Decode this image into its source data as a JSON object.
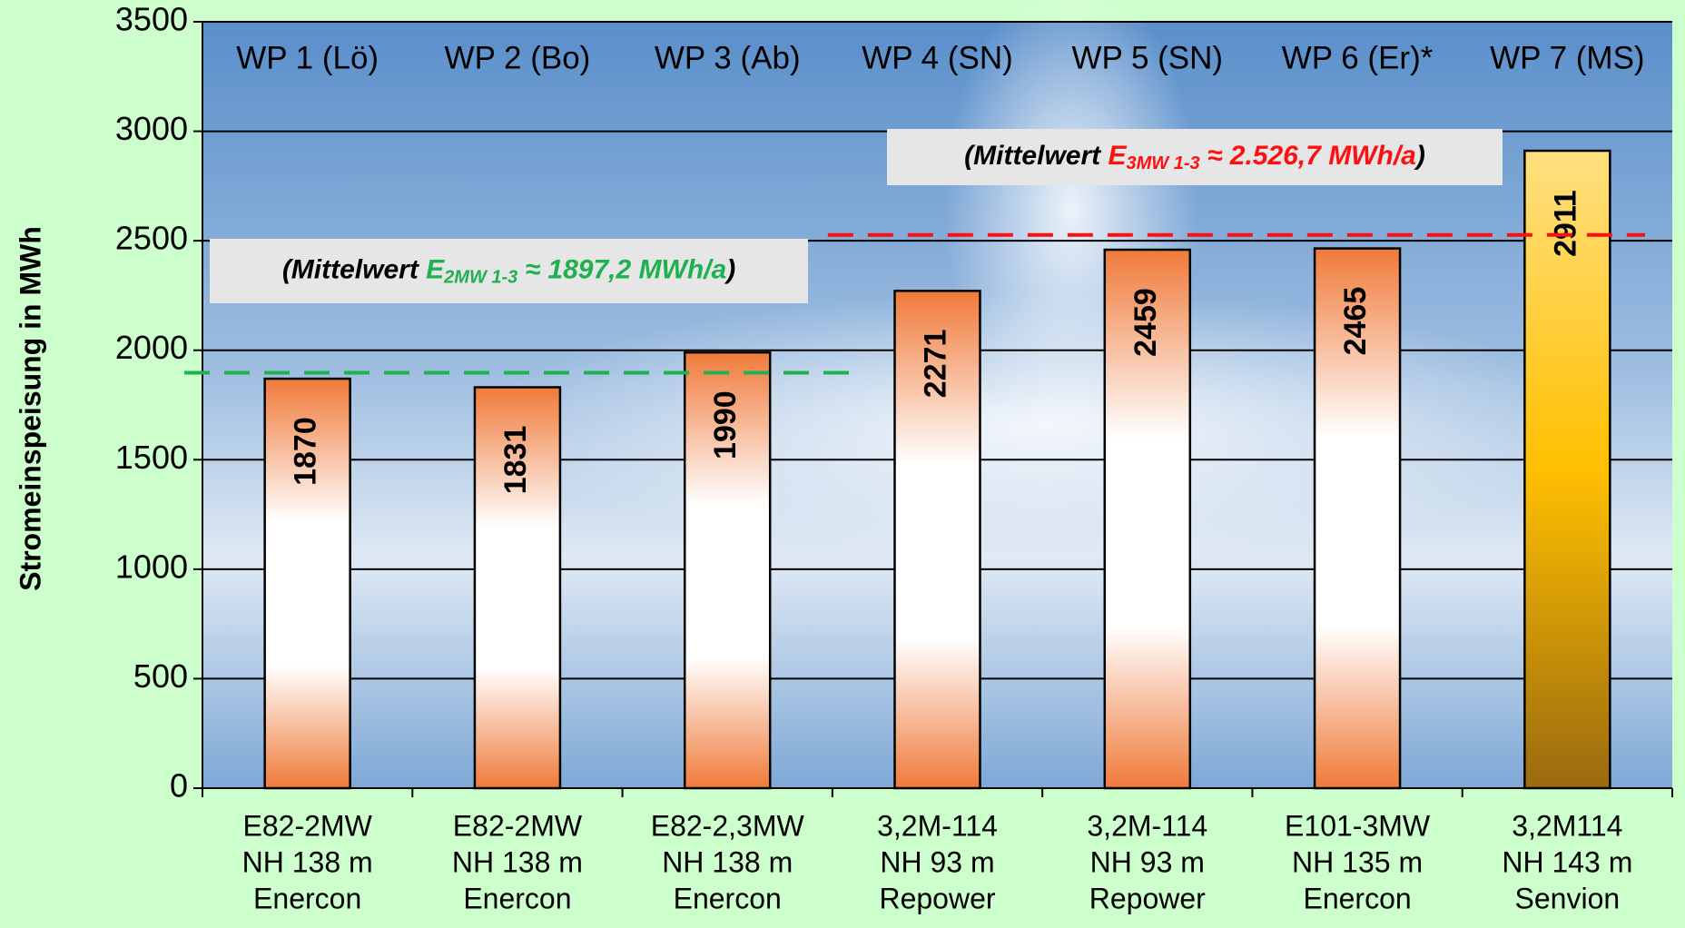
{
  "chart_data": {
    "type": "bar",
    "y_label": "Stromeinspeisung in MWh",
    "categories": [
      [
        "E82-2MW",
        "NH 138 m",
        "Enercon"
      ],
      [
        "E82-2MW",
        "NH 138 m",
        "Enercon"
      ],
      [
        "E82-2,3MW",
        "NH 138 m",
        "Enercon"
      ],
      [
        "3,2M-114",
        "NH 93 m",
        "Repower"
      ],
      [
        "3,2M-114",
        "NH 93 m",
        "Repower"
      ],
      [
        "E101-3MW",
        "NH 135 m",
        "Enercon"
      ],
      [
        "3,2M114",
        "NH 143 m",
        "Senvion"
      ]
    ],
    "site_labels": [
      "WP 1 (Lö)",
      "WP 2 (Bo)",
      "WP 3 (Ab)",
      "WP 4 (SN)",
      "WP 5 (SN)",
      "WP 6 (Er)*",
      "WP 7 (MS)"
    ],
    "values": [
      1870,
      1831,
      1990,
      2271,
      2459,
      2465,
      2911
    ],
    "colors": [
      "#f07a3a",
      "#f07a3a",
      "#f07a3a",
      "#f07a3a",
      "#f07a3a",
      "#f07a3a",
      "#ffc000"
    ],
    "ylim": [
      0,
      3500
    ],
    "yticks": [
      0,
      500,
      1000,
      1500,
      2000,
      2500,
      3000,
      3500
    ],
    "grid": true,
    "reference_lines": [
      {
        "value": 1897.2,
        "color": "#1fb050",
        "text": [
          "(Mittelwert ",
          "E",
          "2MW 1-3",
          " ≈ 1897,2 MWh/a",
          ")"
        ]
      },
      {
        "value": 2526.7,
        "color": "#ff1010",
        "text": [
          "(Mittelwert ",
          "E",
          "3MW  1-3",
          " ≈ 2.526,7 MWh/a",
          ")"
        ]
      }
    ]
  }
}
